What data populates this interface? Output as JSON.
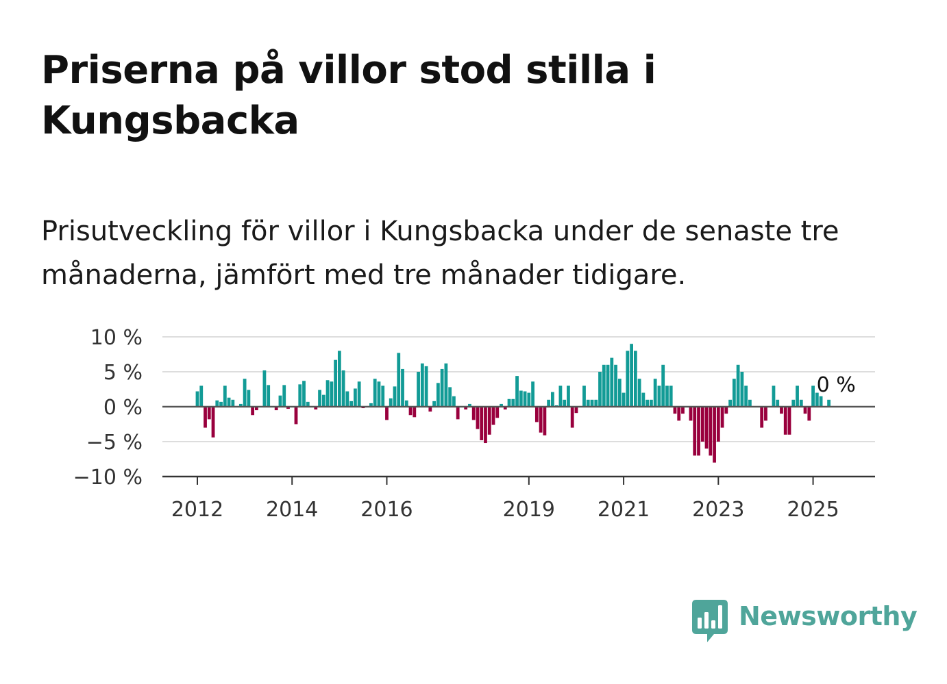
{
  "title": "Priserna på villor stod stilla i Kungsbacka",
  "subtitle": "Prisutveckling för villor i Kungsbacka under de senaste tre månaderna, jämfört med tre månader tidigare.",
  "brand": {
    "name": "Newsworthy",
    "color": "#4fa59a"
  },
  "colors": {
    "positive": "#129b96",
    "negative": "#99003d",
    "zero_line": "#555555",
    "grid": "#dddddd"
  },
  "chart_data": {
    "type": "bar",
    "x_unit": "month",
    "start_month": "2012-01",
    "end_label": "0 %",
    "ylim": [
      -10,
      10
    ],
    "yticks": [
      10,
      5,
      0,
      -5,
      -10
    ],
    "ytick_labels": [
      "10 %",
      "5 %",
      "0 %",
      "−5 %",
      "−10 %"
    ],
    "xtick_labels": [
      {
        "label": "2012",
        "month": "2012-01"
      },
      {
        "label": "2014",
        "month": "2014-01"
      },
      {
        "label": "2016",
        "month": "2016-01"
      },
      {
        "label": "2019",
        "month": "2019-01"
      },
      {
        "label": "2021",
        "month": "2021-01"
      },
      {
        "label": "2023",
        "month": "2023-01"
      },
      {
        "label": "2025",
        "month": "2025-01"
      }
    ],
    "grid": true,
    "values": [
      2.2,
      3.0,
      -3.0,
      -1.8,
      -4.4,
      0.9,
      0.7,
      3.0,
      1.3,
      1.0,
      0.1,
      0.4,
      4.0,
      2.4,
      -1.2,
      -0.5,
      0.1,
      5.2,
      3.1,
      0.1,
      -0.5,
      1.6,
      3.1,
      -0.3,
      0.0,
      -2.5,
      3.2,
      3.7,
      0.7,
      0.1,
      -0.4,
      2.4,
      1.7,
      3.8,
      3.6,
      6.7,
      8.0,
      5.2,
      2.2,
      0.8,
      2.6,
      3.6,
      -0.2,
      0.1,
      0.5,
      4.0,
      3.6,
      3.0,
      -1.9,
      1.2,
      2.9,
      7.7,
      5.4,
      0.9,
      -1.2,
      -1.5,
      5.0,
      6.2,
      5.8,
      -0.7,
      0.8,
      3.4,
      5.4,
      6.2,
      2.8,
      1.5,
      -1.8,
      0.1,
      -0.4,
      0.4,
      -1.9,
      -3.2,
      -4.8,
      -5.2,
      -4.0,
      -2.6,
      -1.6,
      0.4,
      -0.4,
      1.1,
      1.1,
      4.4,
      2.3,
      2.2,
      2.0,
      3.6,
      -2.2,
      -3.7,
      -4.1,
      1.0,
      2.1,
      0.2,
      3.0,
      1.0,
      3.0,
      -3.0,
      -0.9,
      0.1,
      3.0,
      1.0,
      1.0,
      1.0,
      5.0,
      6.0,
      6.0,
      7.0,
      6.0,
      4.0,
      2.0,
      8.0,
      9.0,
      8.0,
      4.0,
      2.0,
      1.0,
      1.0,
      4.0,
      3.0,
      6.0,
      3.0,
      3.0,
      -1.0,
      -2.0,
      -1.0,
      0.0,
      -2.0,
      -7.0,
      -7.0,
      -5.0,
      -6.0,
      -7.0,
      -8.0,
      -5.0,
      -3.0,
      -1.0,
      1.0,
      4.0,
      6.0,
      5.0,
      3.0,
      1.0,
      0.0,
      0.0,
      -3.0,
      -2.0,
      0.0,
      3.0,
      1.0,
      -1.0,
      -4.0,
      -4.0,
      1.0,
      3.0,
      1.0,
      -1.0,
      -2.0,
      3.0,
      2.0,
      1.5,
      0.0,
      1.0
    ]
  }
}
